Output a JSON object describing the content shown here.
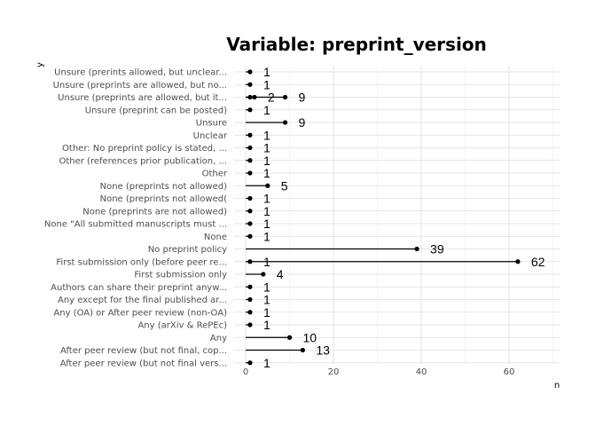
{
  "chart_data": {
    "type": "lollipop",
    "title": "Variable: preprint_version",
    "xlabel": "n",
    "ylabel": "y",
    "xlim": [
      0,
      71
    ],
    "x_ticks": [
      0,
      20,
      40,
      60
    ],
    "grid": true,
    "categories": [
      "Unsure (prerints allowed, but unclear...",
      "Unsure (preprints are allowed, but no...",
      "Unsure (preprints are allowed, but it...",
      "Unsure (preprint can be posted)",
      "Unsure",
      "Unclear",
      "Other: No preprint policy is stated, ...",
      "Other (references prior publication, ...",
      "Other",
      "None (preprints not allowed)",
      "None (preprints not allowed(",
      "None (preprints are not allowed)",
      "None \"All submitted manuscripts must ...",
      "None",
      "No preprint policy",
      "First submission only (before peer re...",
      "First submission only",
      "Authors can share their preprint anyw...",
      "Any except for the final published ar...",
      "Any (OA) or After peer review (non-OA)",
      "Any (arXiv & RePEc)",
      "Any",
      "After peer review (but not final, cop...",
      "After peer review (but not final vers..."
    ],
    "points": [
      [
        {
          "x": 1,
          "label": "1"
        }
      ],
      [
        {
          "x": 1,
          "label": "1"
        }
      ],
      [
        {
          "x": 1,
          "label": ""
        },
        {
          "x": 2,
          "label": "2"
        },
        {
          "x": 9,
          "label": "9"
        }
      ],
      [
        {
          "x": 1,
          "label": "1"
        }
      ],
      [
        {
          "x": 9,
          "label": "9"
        }
      ],
      [
        {
          "x": 1,
          "label": "1"
        }
      ],
      [
        {
          "x": 1,
          "label": "1"
        }
      ],
      [
        {
          "x": 1,
          "label": "1"
        }
      ],
      [
        {
          "x": 1,
          "label": "1"
        }
      ],
      [
        {
          "x": 5,
          "label": "5"
        }
      ],
      [
        {
          "x": 1,
          "label": "1"
        }
      ],
      [
        {
          "x": 1,
          "label": "1"
        }
      ],
      [
        {
          "x": 1,
          "label": "1"
        }
      ],
      [
        {
          "x": 1,
          "label": "1"
        }
      ],
      [
        {
          "x": 39,
          "label": "39"
        }
      ],
      [
        {
          "x": 1,
          "label": "1"
        },
        {
          "x": 62,
          "label": "62"
        }
      ],
      [
        {
          "x": 4,
          "label": "4"
        }
      ],
      [
        {
          "x": 1,
          "label": "1"
        }
      ],
      [
        {
          "x": 1,
          "label": "1"
        }
      ],
      [
        {
          "x": 1,
          "label": "1"
        }
      ],
      [
        {
          "x": 1,
          "label": "1"
        }
      ],
      [
        {
          "x": 10,
          "label": "10"
        }
      ],
      [
        {
          "x": 13,
          "label": "13"
        }
      ],
      [
        {
          "x": 1,
          "label": "1"
        }
      ]
    ]
  }
}
